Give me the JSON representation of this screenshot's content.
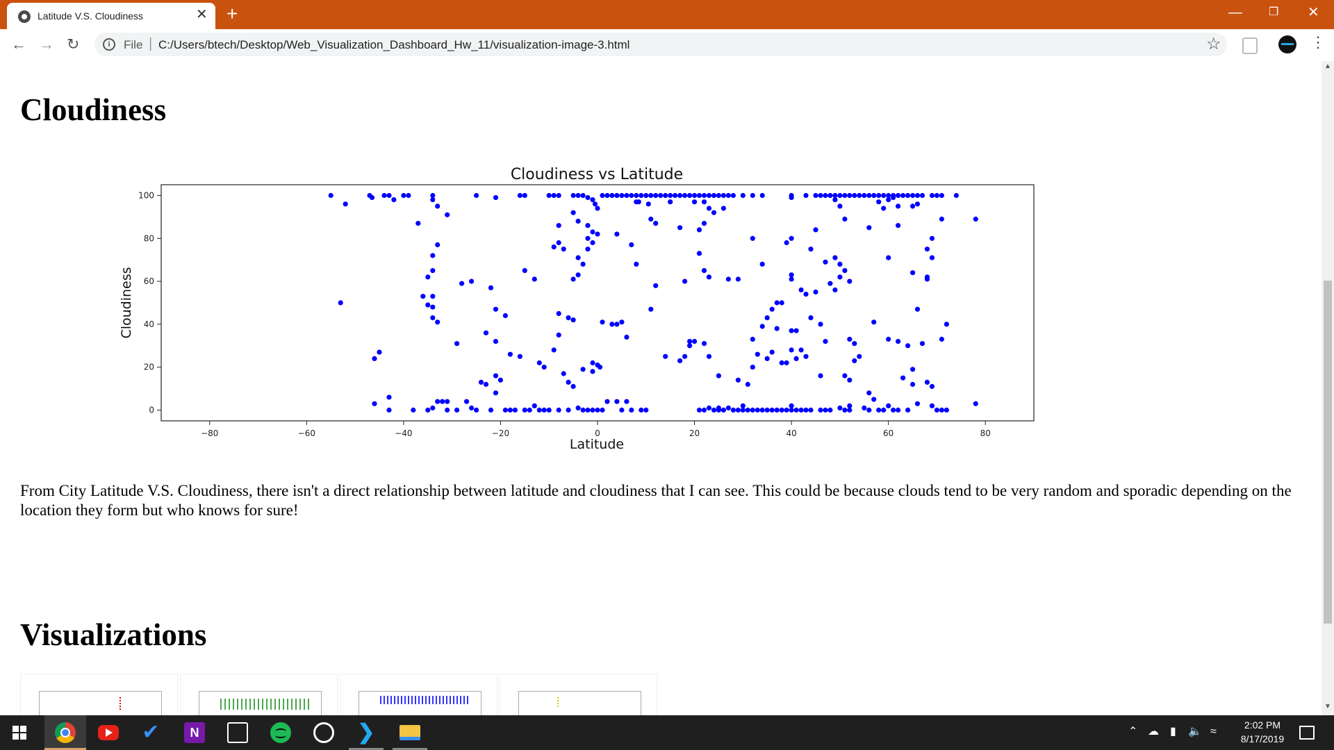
{
  "browser": {
    "tab_title": "Latitude V.S. Cloudiness",
    "tab_close": "✕",
    "new_tab": "+",
    "scheme": "File",
    "url": "C:/Users/btech/Desktop/Web_Visualization_Dashboard_Hw_11/visualization-image-3.html",
    "icons": [
      "globe-icon",
      "close-icon",
      "plus-icon",
      "back-icon",
      "forward-icon",
      "reload-icon",
      "info-icon",
      "star-icon",
      "extension-icon",
      "avatar",
      "menu-icon"
    ]
  },
  "page": {
    "heading": "Cloudiness",
    "paragraph": "From City Latitude V.S. Cloudiness, there isn't a direct relationship between latitude and cloudiness that I can see. This could be because clouds tend to be very random and sporadic depending on the location they form but who knows for sure!",
    "section2_heading": "Visualizations",
    "thumbnails": [
      {
        "color": "#e00000"
      },
      {
        "color": "#008000"
      },
      {
        "color": "#0000ff"
      },
      {
        "color": "#d0d000"
      }
    ]
  },
  "chart_data": {
    "type": "scatter",
    "title": "Cloudiness vs Latitude",
    "xlabel": "Latitude",
    "ylabel": "Cloudiness",
    "xlim": [
      -90,
      90
    ],
    "ylim": [
      -5,
      105
    ],
    "xticks": [
      -80,
      -60,
      -40,
      -20,
      0,
      20,
      40,
      60,
      80
    ],
    "yticks": [
      0,
      20,
      40,
      60,
      80,
      100
    ],
    "color": "#0000ff",
    "grid": false,
    "points": [
      [
        -55,
        100
      ],
      [
        -52,
        96
      ],
      [
        -47,
        100
      ],
      [
        -46.5,
        99
      ],
      [
        -44,
        100
      ],
      [
        -43,
        100
      ],
      [
        -42,
        98
      ],
      [
        -40,
        100
      ],
      [
        -39,
        100
      ],
      [
        -37,
        87
      ],
      [
        -34,
        100
      ],
      [
        -34,
        98
      ],
      [
        -33,
        95
      ],
      [
        -31,
        91
      ],
      [
        -25,
        100
      ],
      [
        -21,
        99
      ],
      [
        -16,
        100
      ],
      [
        -15,
        100
      ],
      [
        -10,
        100
      ],
      [
        -9,
        100
      ],
      [
        -8,
        100
      ],
      [
        -5,
        100
      ],
      [
        -4,
        100
      ],
      [
        -3,
        100
      ],
      [
        -2,
        99
      ],
      [
        -1,
        98
      ],
      [
        -0.5,
        96
      ],
      [
        0,
        94
      ],
      [
        1,
        100
      ],
      [
        2,
        100
      ],
      [
        3,
        100
      ],
      [
        4,
        100
      ],
      [
        5,
        100
      ],
      [
        6,
        100
      ],
      [
        7,
        100
      ],
      [
        8,
        100
      ],
      [
        9,
        100
      ],
      [
        10,
        100
      ],
      [
        11,
        100
      ],
      [
        12,
        100
      ],
      [
        13,
        100
      ],
      [
        14,
        100
      ],
      [
        15,
        100
      ],
      [
        16,
        100
      ],
      [
        17,
        100
      ],
      [
        18,
        100
      ],
      [
        19,
        100
      ],
      [
        20,
        100
      ],
      [
        21,
        100
      ],
      [
        22,
        100
      ],
      [
        23,
        100
      ],
      [
        24,
        100
      ],
      [
        25,
        100
      ],
      [
        26,
        100
      ],
      [
        27,
        100
      ],
      [
        28,
        100
      ],
      [
        30,
        100
      ],
      [
        32,
        100
      ],
      [
        34,
        100
      ],
      [
        40,
        100
      ],
      [
        43,
        100
      ],
      [
        45,
        100
      ],
      [
        46,
        100
      ],
      [
        47,
        100
      ],
      [
        48,
        100
      ],
      [
        49,
        100
      ],
      [
        50,
        100
      ],
      [
        51,
        100
      ],
      [
        52,
        100
      ],
      [
        53,
        100
      ],
      [
        54,
        100
      ],
      [
        55,
        100
      ],
      [
        56,
        100
      ],
      [
        57,
        100
      ],
      [
        58,
        100
      ],
      [
        59,
        100
      ],
      [
        60,
        100
      ],
      [
        61,
        100
      ],
      [
        62,
        100
      ],
      [
        63,
        100
      ],
      [
        64,
        100
      ],
      [
        65,
        100
      ],
      [
        66,
        100
      ],
      [
        67,
        100
      ],
      [
        69,
        100
      ],
      [
        70,
        100
      ],
      [
        71,
        100
      ],
      [
        74,
        100
      ],
      [
        8,
        97
      ],
      [
        8.5,
        97
      ],
      [
        10.5,
        96
      ],
      [
        15,
        97
      ],
      [
        20,
        97
      ],
      [
        22,
        97
      ],
      [
        23,
        94
      ],
      [
        24,
        92
      ],
      [
        26,
        94
      ],
      [
        40,
        99
      ],
      [
        49,
        98
      ],
      [
        50,
        95
      ],
      [
        58,
        97
      ],
      [
        59,
        94
      ],
      [
        60,
        98
      ],
      [
        61,
        99
      ],
      [
        62,
        95
      ],
      [
        65,
        95
      ],
      [
        66,
        96
      ],
      [
        71,
        89
      ],
      [
        78,
        89
      ],
      [
        -8,
        86
      ],
      [
        -2,
        86
      ],
      [
        -2,
        80
      ],
      [
        -1,
        83
      ],
      [
        0,
        82
      ],
      [
        -5,
        92
      ],
      [
        -4,
        88
      ],
      [
        4,
        82
      ],
      [
        7,
        77
      ],
      [
        11,
        89
      ],
      [
        12,
        87
      ],
      [
        17,
        85
      ],
      [
        21,
        84
      ],
      [
        22,
        87
      ],
      [
        45,
        84
      ],
      [
        51,
        89
      ],
      [
        56,
        85
      ],
      [
        62,
        86
      ],
      [
        69,
        80
      ],
      [
        -8,
        78
      ],
      [
        -9,
        76
      ],
      [
        -7,
        75
      ],
      [
        -4,
        71
      ],
      [
        -3,
        68
      ],
      [
        -2,
        75
      ],
      [
        -1,
        78
      ],
      [
        8,
        68
      ],
      [
        21,
        73
      ],
      [
        32,
        80
      ],
      [
        39,
        78
      ],
      [
        40,
        80
      ],
      [
        44,
        75
      ],
      [
        47,
        69
      ],
      [
        49,
        71
      ],
      [
        50,
        68
      ],
      [
        51,
        65
      ],
      [
        60,
        71
      ],
      [
        68,
        75
      ],
      [
        69,
        71
      ],
      [
        -33,
        77
      ],
      [
        -34,
        72
      ],
      [
        -35,
        62
      ],
      [
        -34,
        65
      ],
      [
        -36,
        53
      ],
      [
        -34,
        53
      ],
      [
        -35,
        49
      ],
      [
        -34,
        48
      ],
      [
        -53,
        50
      ],
      [
        -28,
        59
      ],
      [
        -26,
        60
      ],
      [
        -22,
        57
      ],
      [
        -15,
        65
      ],
      [
        -13,
        61
      ],
      [
        -5,
        61
      ],
      [
        -4,
        63
      ],
      [
        12,
        58
      ],
      [
        18,
        60
      ],
      [
        22,
        65
      ],
      [
        23,
        62
      ],
      [
        27,
        61
      ],
      [
        29,
        61
      ],
      [
        34,
        68
      ],
      [
        37,
        50
      ],
      [
        38,
        50
      ],
      [
        36,
        47
      ],
      [
        40,
        61
      ],
      [
        40,
        63
      ],
      [
        42,
        56
      ],
      [
        43,
        54
      ],
      [
        45,
        55
      ],
      [
        48,
        59
      ],
      [
        49,
        56
      ],
      [
        50,
        62
      ],
      [
        52,
        60
      ],
      [
        65,
        64
      ],
      [
        68,
        61
      ],
      [
        68,
        62
      ],
      [
        -34,
        43
      ],
      [
        -33,
        41
      ],
      [
        -21,
        47
      ],
      [
        -19,
        44
      ],
      [
        -8,
        45
      ],
      [
        -6,
        43
      ],
      [
        -5,
        42
      ],
      [
        1,
        41
      ],
      [
        3,
        40
      ],
      [
        4,
        40
      ],
      [
        5,
        41
      ],
      [
        6,
        34
      ],
      [
        11,
        47
      ],
      [
        34,
        39
      ],
      [
        35,
        43
      ],
      [
        40,
        37
      ],
      [
        41,
        37
      ],
      [
        42,
        28
      ],
      [
        44,
        43
      ],
      [
        46,
        40
      ],
      [
        47,
        32
      ],
      [
        52,
        33
      ],
      [
        53,
        31
      ],
      [
        54,
        25
      ],
      [
        57,
        41
      ],
      [
        66,
        47
      ],
      [
        71,
        33
      ],
      [
        72,
        40
      ],
      [
        -46,
        24
      ],
      [
        -45,
        27
      ],
      [
        -29,
        31
      ],
      [
        -23,
        36
      ],
      [
        -21,
        32
      ],
      [
        -18,
        26
      ],
      [
        -16,
        25
      ],
      [
        -12,
        22
      ],
      [
        -11,
        20
      ],
      [
        -9,
        28
      ],
      [
        -8,
        35
      ],
      [
        -7,
        17
      ],
      [
        -6,
        13
      ],
      [
        -5,
        11
      ],
      [
        -3,
        19
      ],
      [
        -1,
        18
      ],
      [
        0,
        21
      ],
      [
        0.5,
        20
      ],
      [
        -1,
        22
      ],
      [
        14,
        25
      ],
      [
        17,
        23
      ],
      [
        18,
        25
      ],
      [
        19,
        32
      ],
      [
        19,
        30
      ],
      [
        20,
        32
      ],
      [
        22,
        31
      ],
      [
        23,
        25
      ],
      [
        25,
        16
      ],
      [
        29,
        14
      ],
      [
        31,
        12
      ],
      [
        32,
        33
      ],
      [
        32,
        20
      ],
      [
        33,
        26
      ],
      [
        35,
        24
      ],
      [
        36,
        27
      ],
      [
        37,
        38
      ],
      [
        38,
        22
      ],
      [
        39,
        22
      ],
      [
        40,
        28
      ],
      [
        41,
        24
      ],
      [
        43,
        25
      ],
      [
        46,
        16
      ],
      [
        51,
        16
      ],
      [
        52,
        14
      ],
      [
        53,
        23
      ],
      [
        56,
        8
      ],
      [
        57,
        5
      ],
      [
        60,
        2
      ],
      [
        60,
        33
      ],
      [
        62,
        32
      ],
      [
        63,
        15
      ],
      [
        64,
        30
      ],
      [
        65,
        12
      ],
      [
        65,
        19
      ],
      [
        67,
        31
      ],
      [
        68,
        13
      ],
      [
        69,
        11
      ],
      [
        -46,
        3
      ],
      [
        -43,
        6
      ],
      [
        -43,
        0
      ],
      [
        -38,
        0
      ],
      [
        -35,
        0
      ],
      [
        -34,
        1
      ],
      [
        -33,
        4
      ],
      [
        -32,
        4
      ],
      [
        -31,
        4
      ],
      [
        -31,
        0
      ],
      [
        -29,
        0
      ],
      [
        -27,
        4
      ],
      [
        -26,
        1
      ],
      [
        -25,
        0
      ],
      [
        -24,
        13
      ],
      [
        -23,
        12
      ],
      [
        -22,
        0
      ],
      [
        -21,
        16
      ],
      [
        -20,
        14
      ],
      [
        -21,
        8
      ],
      [
        -19,
        0
      ],
      [
        -18,
        0
      ],
      [
        -17,
        0
      ],
      [
        -15,
        0
      ],
      [
        -14,
        0
      ],
      [
        -13,
        2
      ],
      [
        -12,
        0
      ],
      [
        -11,
        0
      ],
      [
        -10,
        0
      ],
      [
        -8,
        0
      ],
      [
        -6,
        0
      ],
      [
        -4,
        1
      ],
      [
        -3,
        0
      ],
      [
        -2,
        0
      ],
      [
        -1,
        0
      ],
      [
        0,
        0
      ],
      [
        1,
        0
      ],
      [
        2,
        4
      ],
      [
        4,
        4
      ],
      [
        5,
        0
      ],
      [
        6,
        4
      ],
      [
        7,
        0
      ],
      [
        9,
        0
      ],
      [
        10,
        0
      ],
      [
        21,
        0
      ],
      [
        22,
        0
      ],
      [
        23,
        1
      ],
      [
        24,
        0
      ],
      [
        25,
        0
      ],
      [
        26,
        0
      ],
      [
        27,
        1
      ],
      [
        28,
        0
      ],
      [
        29,
        0
      ],
      [
        30,
        0
      ],
      [
        31,
        0
      ],
      [
        32,
        0
      ],
      [
        33,
        0
      ],
      [
        34,
        0
      ],
      [
        35,
        0
      ],
      [
        36,
        0
      ],
      [
        37,
        0
      ],
      [
        38,
        0
      ],
      [
        39,
        0
      ],
      [
        40,
        0
      ],
      [
        41,
        0
      ],
      [
        42,
        0
      ],
      [
        43,
        0
      ],
      [
        44,
        0
      ],
      [
        46,
        0
      ],
      [
        47,
        0
      ],
      [
        48,
        0
      ],
      [
        50,
        1
      ],
      [
        51,
        0
      ],
      [
        52,
        0
      ],
      [
        55,
        1
      ],
      [
        56,
        0
      ],
      [
        58,
        0
      ],
      [
        59,
        0
      ],
      [
        61,
        0
      ],
      [
        62,
        0
      ],
      [
        64,
        0
      ],
      [
        66,
        3
      ],
      [
        69,
        2
      ],
      [
        70,
        0
      ],
      [
        71,
        0
      ],
      [
        72,
        0
      ],
      [
        78,
        3
      ],
      [
        52,
        2
      ],
      [
        40,
        2
      ],
      [
        30,
        2
      ],
      [
        25,
        1
      ]
    ]
  },
  "taskbar": {
    "apps": [
      "windows-logo",
      "chrome",
      "youtube",
      "todo",
      "onenote",
      "calendar",
      "spotify",
      "alarm",
      "vscode",
      "file-explorer"
    ],
    "time": "2:02 PM",
    "date": "8/17/2019"
  }
}
